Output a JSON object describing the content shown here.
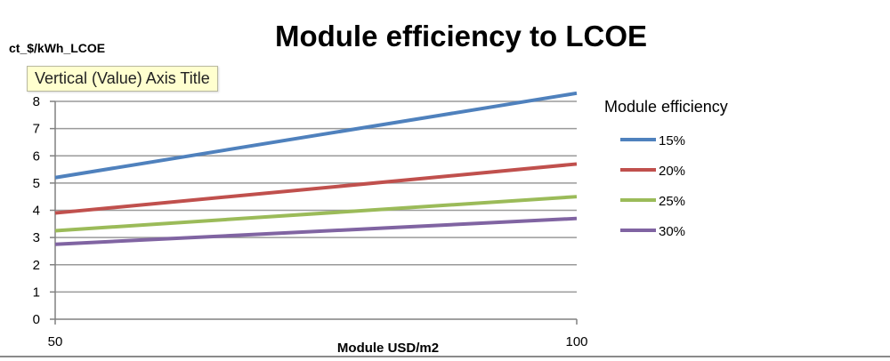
{
  "chart_data": {
    "type": "line",
    "title": "Module efficiency to LCOE",
    "xlabel": "Module USD/m2",
    "ylabel": "ct_$/kWh_LCOE",
    "x": [
      50,
      100
    ],
    "xticks": [
      "50",
      "100"
    ],
    "ylim": [
      0,
      8
    ],
    "yticks": [
      0,
      1,
      2,
      3,
      4,
      5,
      6,
      7,
      8
    ],
    "grid": true,
    "legend_title": "Module efficiency",
    "legend_position": "right",
    "series": [
      {
        "name": "15%",
        "color": "#4f81bd",
        "values": [
          5.2,
          8.3
        ]
      },
      {
        "name": "20%",
        "color": "#c0504d",
        "values": [
          3.9,
          5.7
        ]
      },
      {
        "name": "25%",
        "color": "#9bbb59",
        "values": [
          3.25,
          4.5
        ]
      },
      {
        "name": "30%",
        "color": "#8064a2",
        "values": [
          2.75,
          3.7
        ]
      }
    ]
  },
  "tooltip": {
    "text": "Vertical (Value) Axis Title"
  }
}
